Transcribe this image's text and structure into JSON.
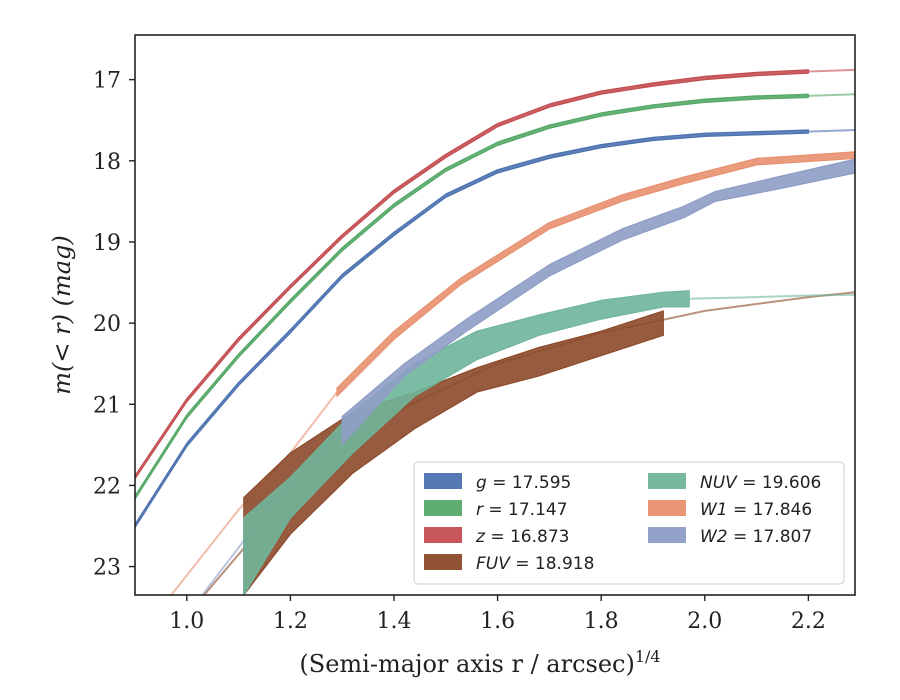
{
  "chart_data": {
    "type": "line",
    "xlabel": "(Semi-major axis r / arcsec)",
    "xlabel_superscript": "1/4",
    "ylabel": "m(< r) (mag)",
    "xlim": [
      0.9,
      2.29
    ],
    "ylim": [
      23.35,
      16.45
    ],
    "y_inverted": true,
    "xticks": [
      1.0,
      1.2,
      1.4,
      1.6,
      1.8,
      2.0,
      2.2
    ],
    "xtick_labels": [
      "1.0",
      "1.2",
      "1.4",
      "1.6",
      "1.8",
      "2.0",
      "2.2"
    ],
    "yticks": [
      17,
      18,
      19,
      20,
      21,
      22,
      23
    ],
    "ytick_labels": [
      "17",
      "18",
      "19",
      "20",
      "21",
      "22",
      "23"
    ],
    "grid": false,
    "legend_position": "lower-right",
    "series": [
      {
        "name": "g",
        "legend": "g = 17.595",
        "color": "#4c72b0",
        "kind": "band",
        "x": [
          0.9,
          1.0,
          1.1,
          1.2,
          1.3,
          1.4,
          1.5,
          1.6,
          1.7,
          1.8,
          1.9,
          2.0,
          2.1,
          2.2
        ],
        "y_low": [
          22.52,
          21.52,
          20.77,
          20.12,
          19.44,
          18.92,
          18.45,
          18.15,
          17.97,
          17.84,
          17.75,
          17.7,
          17.68,
          17.66
        ],
        "y_high": [
          22.48,
          21.48,
          20.73,
          20.08,
          19.4,
          18.88,
          18.41,
          18.11,
          17.93,
          17.8,
          17.71,
          17.66,
          17.64,
          17.62
        ],
        "model_x": [
          2.2,
          2.29
        ],
        "model_y": [
          17.64,
          17.62
        ]
      },
      {
        "name": "r",
        "legend": "r = 17.147",
        "color": "#55a868",
        "kind": "band",
        "x": [
          0.9,
          1.0,
          1.1,
          1.2,
          1.3,
          1.4,
          1.5,
          1.6,
          1.7,
          1.8,
          1.9,
          2.0,
          2.1,
          2.2
        ],
        "y_low": [
          22.17,
          21.17,
          20.42,
          19.75,
          19.11,
          18.57,
          18.13,
          17.81,
          17.6,
          17.45,
          17.35,
          17.28,
          17.24,
          17.22
        ],
        "y_high": [
          22.13,
          21.13,
          20.38,
          19.71,
          19.07,
          18.53,
          18.09,
          17.77,
          17.56,
          17.41,
          17.31,
          17.24,
          17.2,
          17.18
        ],
        "model_x": [
          2.2,
          2.29
        ],
        "model_y": [
          17.2,
          17.18
        ]
      },
      {
        "name": "z",
        "legend": "z = 16.873",
        "color": "#c44e52",
        "kind": "band",
        "x": [
          0.9,
          1.0,
          1.1,
          1.2,
          1.3,
          1.4,
          1.5,
          1.6,
          1.7,
          1.8,
          1.9,
          2.0,
          2.1,
          2.2
        ],
        "y_low": [
          21.92,
          20.97,
          20.22,
          19.57,
          18.95,
          18.4,
          17.96,
          17.58,
          17.34,
          17.18,
          17.08,
          17.0,
          16.95,
          16.92
        ],
        "y_high": [
          21.88,
          20.93,
          20.18,
          19.53,
          18.91,
          18.36,
          17.92,
          17.54,
          17.3,
          17.14,
          17.04,
          16.96,
          16.91,
          16.88
        ],
        "model_x": [
          2.2,
          2.29
        ],
        "model_y": [
          16.9,
          16.88
        ]
      },
      {
        "name": "FUV",
        "legend": "FUV = 18.918",
        "color": "#8c4a2a",
        "kind": "band",
        "x": [
          1.11,
          1.2,
          1.32,
          1.44,
          1.56,
          1.68,
          1.8,
          1.92
        ],
        "y_low": [
          23.35,
          22.6,
          21.85,
          21.3,
          20.85,
          20.65,
          20.4,
          20.15
        ],
        "y_high": [
          22.15,
          21.6,
          21.1,
          20.85,
          20.55,
          20.3,
          20.1,
          19.85
        ],
        "model_x": [
          1.0,
          1.2,
          1.4,
          1.6,
          1.8,
          2.0,
          2.2,
          2.29
        ],
        "model_y": [
          23.6,
          22.1,
          21.1,
          20.5,
          20.12,
          19.85,
          19.68,
          19.62
        ]
      },
      {
        "name": "NUV",
        "legend": "NUV = 19.606",
        "color": "#6fb59a",
        "kind": "band",
        "x": [
          1.11,
          1.2,
          1.32,
          1.44,
          1.56,
          1.68,
          1.8,
          1.92,
          1.97
        ],
        "y_low": [
          23.35,
          22.4,
          21.6,
          20.9,
          20.45,
          20.15,
          19.95,
          19.8,
          19.8
        ],
        "y_high": [
          22.4,
          21.9,
          21.1,
          20.5,
          20.1,
          19.9,
          19.72,
          19.62,
          19.6
        ],
        "model_x": [
          1.97,
          2.1,
          2.2,
          2.29
        ],
        "model_y": [
          19.7,
          19.68,
          19.66,
          19.65
        ]
      },
      {
        "name": "W1",
        "legend": "W1 = 17.846",
        "color": "#e8906f",
        "kind": "band",
        "x": [
          1.29,
          1.4,
          1.53,
          1.7,
          1.84,
          1.96,
          2.1,
          2.29
        ],
        "y_low": [
          20.9,
          20.2,
          19.52,
          18.84,
          18.5,
          18.28,
          18.05,
          17.97
        ],
        "y_high": [
          20.8,
          20.1,
          19.44,
          18.76,
          18.42,
          18.2,
          17.97,
          17.89
        ],
        "model_x": [
          0.97,
          1.1,
          1.2,
          1.29
        ],
        "model_y": [
          23.35,
          22.3,
          21.6,
          20.85
        ]
      },
      {
        "name": "W2",
        "legend": "W2 = 17.807",
        "color": "#8e9dc6",
        "kind": "band",
        "x": [
          1.3,
          1.42,
          1.54,
          1.7,
          1.84,
          1.96,
          2.02,
          2.14,
          2.29
        ],
        "y_low": [
          21.5,
          20.65,
          20.1,
          19.42,
          18.98,
          18.7,
          18.5,
          18.35,
          18.15
        ],
        "y_high": [
          21.15,
          20.5,
          19.95,
          19.28,
          18.84,
          18.56,
          18.38,
          18.2,
          17.98
        ],
        "model_x": [
          1.03,
          1.15,
          1.25,
          1.3
        ],
        "model_y": [
          23.35,
          22.35,
          21.7,
          21.3
        ]
      }
    ]
  }
}
